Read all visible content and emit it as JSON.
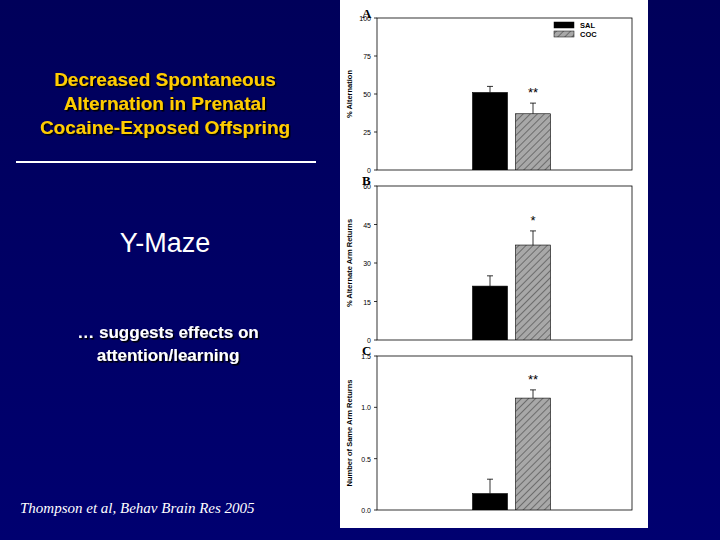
{
  "slide": {
    "title": [
      "Decreased Spontaneous",
      "Alternation in Prenatal",
      "Cocaine-Exposed Offspring"
    ],
    "heading": "Y-Maze",
    "note": [
      "… suggests effects on",
      "attention/learning"
    ],
    "citation": "Thompson et al, Behav Brain Res  2005"
  },
  "chart_data": [
    {
      "type": "bar",
      "title": "A",
      "y_label": "% Alternation",
      "categories": [
        null
      ],
      "series": [
        {
          "name": "SAL",
          "color": "#000000",
          "values": [
            51
          ],
          "errors": [
            4
          ]
        },
        {
          "name": "COC",
          "color": "#a8a8a8",
          "values": [
            37
          ],
          "errors": [
            7
          ],
          "annotation": "**"
        }
      ],
      "ylim": [
        0,
        100
      ],
      "yticks": [
        0,
        25,
        50,
        75,
        100
      ],
      "legend": "upper right"
    },
    {
      "type": "bar",
      "title": "B",
      "y_label": "% Alternate Arm Returns",
      "categories": [
        null
      ],
      "series": [
        {
          "name": "SAL",
          "color": "#000000",
          "values": [
            21
          ],
          "errors": [
            4
          ]
        },
        {
          "name": "COC",
          "color": "#a8a8a8",
          "values": [
            37
          ],
          "errors": [
            5.5
          ],
          "annotation": "*"
        }
      ],
      "ylim": [
        0,
        60
      ],
      "yticks": [
        0,
        15,
        30,
        45,
        60
      ]
    },
    {
      "type": "bar",
      "title": "C",
      "y_label": "Number of Same Arm Returns",
      "categories": [
        null
      ],
      "series": [
        {
          "name": "SAL",
          "color": "#000000",
          "values": [
            0.16
          ],
          "errors": [
            0.14
          ]
        },
        {
          "name": "COC",
          "color": "#a8a8a8",
          "values": [
            1.09
          ],
          "errors": [
            0.08
          ],
          "annotation": "**"
        }
      ],
      "ylim": [
        0,
        1.5
      ],
      "yticks": [
        {
          "value": 0,
          "label": "0.0"
        },
        {
          "value": 0.5,
          "label": "0.5"
        },
        {
          "value": 1,
          "label": "1.0"
        },
        {
          "value": 1.5,
          "label": "1.5"
        }
      ]
    }
  ]
}
